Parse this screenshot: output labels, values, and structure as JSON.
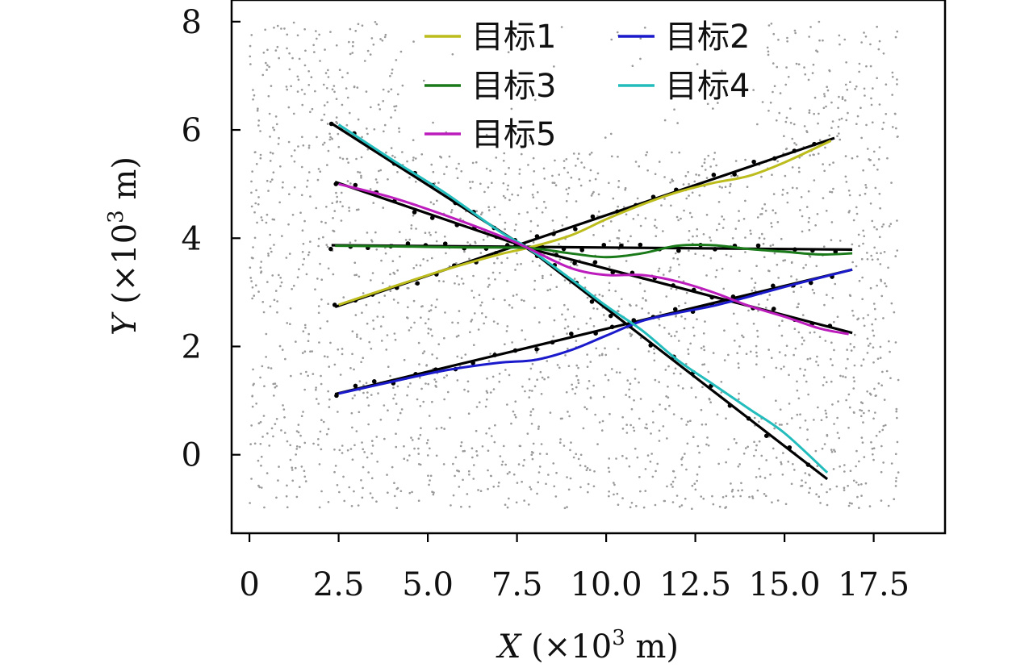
{
  "chart_data": {
    "type": "line",
    "xlabel": {
      "var": "X",
      "unit_pre": " (×10",
      "exp": "3",
      "unit_post": " m)"
    },
    "ylabel": {
      "var": "Y",
      "unit_pre": " (×10",
      "exp": "3",
      "unit_post": " m)"
    },
    "xlim": [
      -0.5,
      19.5
    ],
    "ylim": [
      -1.45,
      8.4
    ],
    "x_ticks": [
      0,
      2.5,
      5.0,
      7.5,
      10.0,
      12.5,
      15.0,
      17.5
    ],
    "x_tick_labels": [
      "0",
      "2.5",
      "5.0",
      "7.5",
      "10.0",
      "12.5",
      "15.0",
      "17.5"
    ],
    "y_ticks": [
      0,
      2,
      4,
      6,
      8
    ],
    "y_tick_labels": [
      "0",
      "2",
      "4",
      "6",
      "8"
    ],
    "grid": false,
    "legend_position": "top-center",
    "truth_color": "#000000",
    "clutter_color": "#9a9a9a",
    "series": [
      {
        "name": "目标1",
        "color": "#bcbc1c",
        "estimate": [
          [
            2.5,
            2.77
          ],
          [
            4.0,
            3.1
          ],
          [
            5.5,
            3.42
          ],
          [
            7.0,
            3.7
          ],
          [
            7.8,
            3.82
          ],
          [
            9.0,
            4.05
          ],
          [
            10.0,
            4.35
          ],
          [
            11.0,
            4.62
          ],
          [
            12.0,
            4.85
          ],
          [
            13.0,
            5.02
          ],
          [
            14.0,
            5.15
          ],
          [
            15.0,
            5.4
          ],
          [
            16.3,
            5.8
          ]
        ],
        "truth": [
          [
            2.4,
            2.73
          ],
          [
            16.4,
            5.85
          ]
        ]
      },
      {
        "name": "目标2",
        "color": "#1a1acc",
        "estimate": [
          [
            2.5,
            1.13
          ],
          [
            4.0,
            1.35
          ],
          [
            5.5,
            1.56
          ],
          [
            7.0,
            1.7
          ],
          [
            8.0,
            1.75
          ],
          [
            9.0,
            1.93
          ],
          [
            10.0,
            2.2
          ],
          [
            11.0,
            2.47
          ],
          [
            12.0,
            2.62
          ],
          [
            13.0,
            2.75
          ],
          [
            14.0,
            2.92
          ],
          [
            15.0,
            3.1
          ],
          [
            16.0,
            3.27
          ],
          [
            16.9,
            3.42
          ]
        ],
        "truth": [
          [
            2.4,
            1.12
          ],
          [
            16.9,
            3.42
          ]
        ]
      },
      {
        "name": "目标3",
        "color": "#1a7a1a",
        "estimate": [
          [
            2.4,
            3.86
          ],
          [
            4.0,
            3.85
          ],
          [
            6.0,
            3.83
          ],
          [
            7.8,
            3.82
          ],
          [
            9.0,
            3.72
          ],
          [
            10.0,
            3.65
          ],
          [
            11.0,
            3.72
          ],
          [
            12.0,
            3.86
          ],
          [
            13.0,
            3.87
          ],
          [
            14.0,
            3.8
          ],
          [
            15.0,
            3.75
          ],
          [
            16.0,
            3.7
          ],
          [
            16.9,
            3.72
          ]
        ],
        "truth": [
          [
            2.3,
            3.87
          ],
          [
            16.9,
            3.79
          ]
        ]
      },
      {
        "name": "目标4",
        "color": "#22bcbc",
        "estimate": [
          [
            2.5,
            6.1
          ],
          [
            4.0,
            5.45
          ],
          [
            5.5,
            4.83
          ],
          [
            7.0,
            4.13
          ],
          [
            7.8,
            3.82
          ],
          [
            9.0,
            3.25
          ],
          [
            10.0,
            2.75
          ],
          [
            11.0,
            2.3
          ],
          [
            12.0,
            1.75
          ],
          [
            13.0,
            1.3
          ],
          [
            14.0,
            0.85
          ],
          [
            15.0,
            0.4
          ],
          [
            16.2,
            -0.33
          ]
        ],
        "truth": [
          [
            2.3,
            6.12
          ],
          [
            8.0,
            3.72
          ],
          [
            16.2,
            -0.45
          ]
        ]
      },
      {
        "name": "目标5",
        "color": "#bc1cbc",
        "estimate": [
          [
            2.5,
            5.0
          ],
          [
            4.0,
            4.75
          ],
          [
            5.5,
            4.42
          ],
          [
            7.0,
            4.05
          ],
          [
            7.8,
            3.82
          ],
          [
            9.0,
            3.45
          ],
          [
            10.0,
            3.32
          ],
          [
            11.0,
            3.32
          ],
          [
            12.0,
            3.2
          ],
          [
            13.0,
            3.0
          ],
          [
            14.0,
            2.75
          ],
          [
            15.0,
            2.55
          ],
          [
            16.0,
            2.33
          ],
          [
            16.8,
            2.23
          ]
        ],
        "truth": [
          [
            2.4,
            5.04
          ],
          [
            8.0,
            3.78
          ],
          [
            16.9,
            2.25
          ]
        ]
      }
    ]
  }
}
